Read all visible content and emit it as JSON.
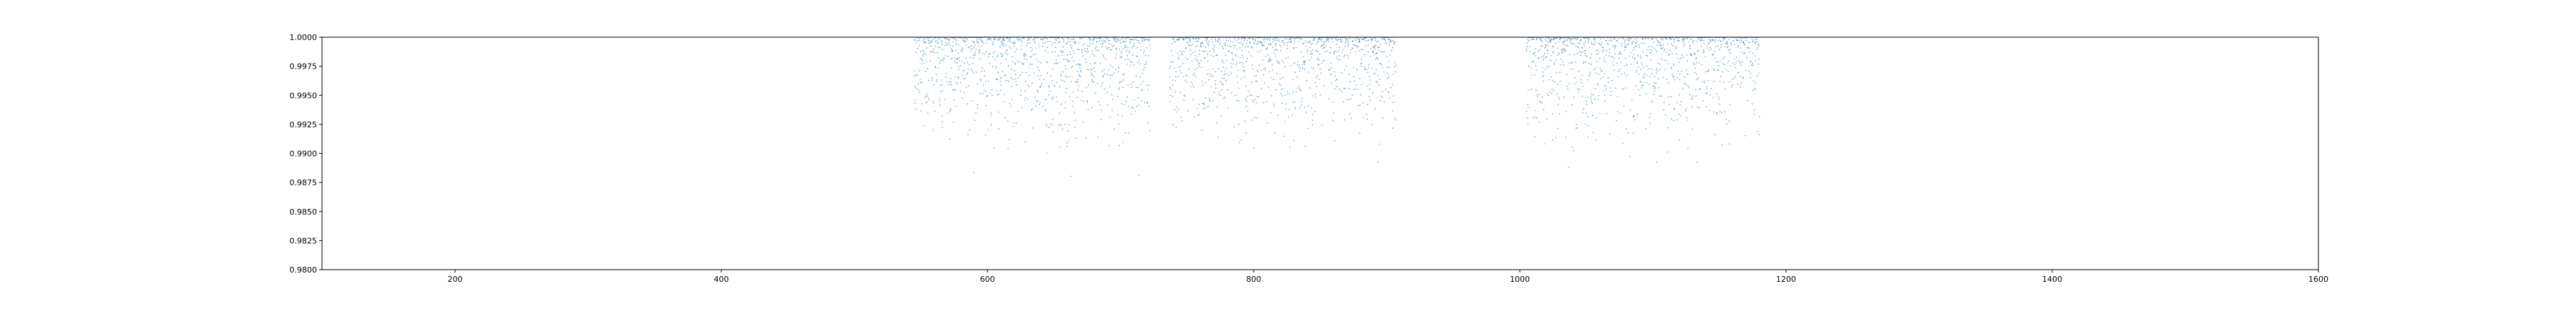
{
  "chart_data": {
    "type": "scatter",
    "title": "",
    "xlabel": "",
    "ylabel": "",
    "xlim": [
      100,
      1600
    ],
    "ylim": [
      0.98,
      1.0
    ],
    "grid": false,
    "legend": "none",
    "marker_color": "#1f77b4",
    "xticks": [
      200,
      400,
      600,
      800,
      1000,
      1200,
      1400,
      1600
    ],
    "xtick_labels": [
      "200",
      "400",
      "600",
      "800",
      "1000",
      "1200",
      "1400",
      "1600"
    ],
    "yticks": [
      0.98,
      0.9825,
      0.985,
      0.9875,
      0.99,
      0.9925,
      0.995,
      0.9975,
      1.0
    ],
    "ytick_labels": [
      "0.9800",
      "0.9825",
      "0.9850",
      "0.9875",
      "0.9900",
      "0.9925",
      "0.9950",
      "0.9975",
      "1.0000"
    ],
    "series": [
      {
        "segments": [
          {
            "x_start": 545,
            "x_end": 722,
            "y_min": 0.9875,
            "y_max": 1.0
          },
          {
            "x_start": 737,
            "x_end": 907,
            "y_min": 0.9885,
            "y_max": 1.0
          },
          {
            "x_start": 1005,
            "x_end": 1180,
            "y_min": 0.9885,
            "y_max": 1.0
          }
        ]
      }
    ]
  }
}
